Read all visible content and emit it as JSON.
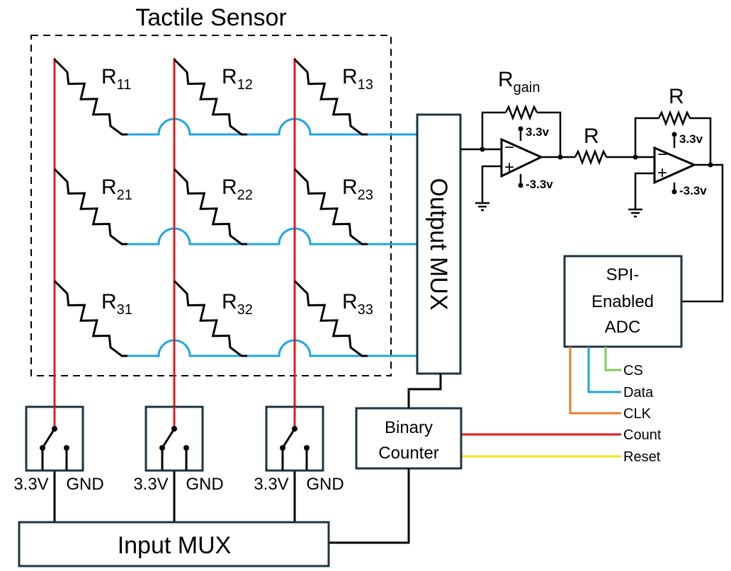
{
  "title": "Tactile Sensor",
  "resistors": {
    "symbol": "R",
    "r11": "11",
    "r12": "12",
    "r13": "13",
    "r21": "21",
    "r22": "22",
    "r23": "23",
    "r31": "31",
    "r32": "32",
    "r33": "33"
  },
  "output_mux": "Output MUX",
  "input_mux": "Input MUX",
  "binary_counter": [
    "Binary",
    "Counter"
  ],
  "adc": [
    "SPI-",
    "Enabled",
    "ADC"
  ],
  "amp": {
    "gain_r": "R",
    "gain_sub": "gain",
    "r_series": "R",
    "r_feedback": "R",
    "vpos": "3.3v",
    "vneg": "-3.3v",
    "minus": "−",
    "plus": "+"
  },
  "switches": {
    "v_label": "3.3V",
    "gnd_label": "GND"
  },
  "signals": {
    "cs": "CS",
    "data": "Data",
    "clk": "CLK",
    "count": "Count",
    "reset": "Reset"
  },
  "colors": {
    "row_line": "#1ea6e3",
    "column_line": "#e31b1b",
    "cs": "#7dce5a",
    "data": "#1ea6e3",
    "clk": "#e87d2c",
    "count": "#e31b1b",
    "reset": "#f4e51a",
    "box_border": "#1d3440"
  }
}
